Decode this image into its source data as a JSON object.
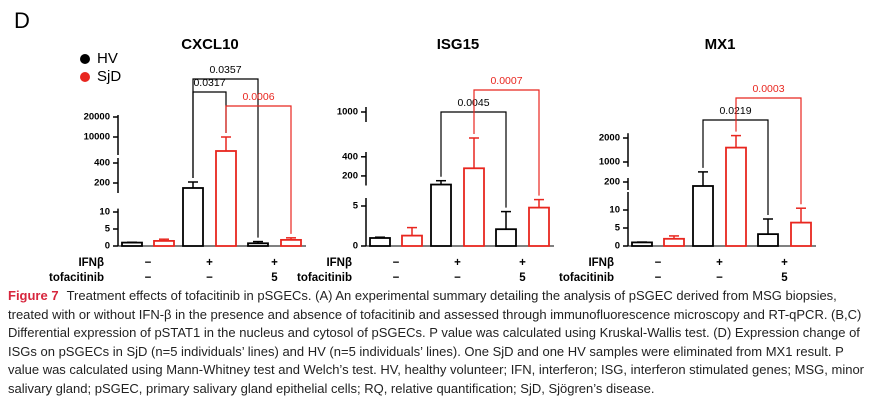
{
  "panel_label": "D",
  "legend": [
    {
      "name": "HV",
      "color": "#000000"
    },
    {
      "name": "SjD",
      "color": "#e8261f"
    }
  ],
  "row_labels": [
    "IFNβ",
    "tofacitinib"
  ],
  "chart_data": [
    {
      "type": "bar",
      "title": "CXCL10",
      "ifn_row": [
        "−",
        "+",
        "+"
      ],
      "tofa_row": [
        "−",
        "−",
        "5"
      ],
      "series": [
        {
          "values": [
            1,
            150,
            0.8
          ],
          "errors": [
            0.1,
            60,
            0.5
          ]
        },
        {
          "values": [
            1.5,
            3000,
            1.8
          ],
          "errors": [
            0.5,
            7000,
            0.6
          ]
        }
      ],
      "ylim": [
        0,
        21000
      ],
      "ysegments": [
        [
          0,
          11
        ],
        [
          100,
          450
        ],
        [
          1000,
          21000
        ]
      ],
      "yticks": [
        0,
        5,
        10,
        200,
        400,
        10000,
        20000
      ],
      "comparisons": [
        {
          "label": "0.0357",
          "color": "#000000"
        },
        {
          "label": "0.0317",
          "color": "#000000"
        },
        {
          "label": "0.0006",
          "color": "#e8261f"
        }
      ]
    },
    {
      "type": "bar",
      "title": "ISG15",
      "ifn_row": [
        "−",
        "+",
        "+"
      ],
      "tofa_row": [
        "−",
        "−",
        "5"
      ],
      "series": [
        {
          "values": [
            1,
            110,
            2.1
          ],
          "errors": [
            0.1,
            40,
            2.2
          ]
        },
        {
          "values": [
            1.3,
            280,
            4.8
          ],
          "errors": [
            1,
            380,
            1
          ]
        }
      ],
      "ylim": [
        0,
        1050
      ],
      "ysegments": [
        [
          0,
          6
        ],
        [
          100,
          450
        ],
        [
          900,
          1050
        ]
      ],
      "yticks": [
        0,
        5,
        200,
        400,
        1000
      ],
      "comparisons": [
        {
          "label": "0.0045",
          "color": "#000000"
        },
        {
          "label": "0.0007",
          "color": "#e8261f"
        }
      ]
    },
    {
      "type": "bar",
      "title": "MX1",
      "ifn_row": [
        "−",
        "+",
        "+"
      ],
      "tofa_row": [
        "−",
        "−",
        "5"
      ],
      "series": [
        {
          "values": [
            1,
            150,
            3.3
          ],
          "errors": [
            0.1,
            400,
            4.2
          ]
        },
        {
          "values": [
            2,
            1600,
            6.5
          ],
          "errors": [
            0.8,
            500,
            4
          ]
        }
      ],
      "ylim": [
        0,
        2200
      ],
      "ysegments": [
        [
          0,
          15
        ],
        [
          100,
          250
        ],
        [
          800,
          2200
        ]
      ],
      "yticks": [
        0,
        5,
        10,
        200,
        1000,
        2000
      ],
      "comparisons": [
        {
          "label": "0.0219",
          "color": "#000000"
        },
        {
          "label": "0.0003",
          "color": "#e8261f"
        }
      ]
    }
  ],
  "caption": {
    "label": "Figure 7",
    "text": "Treatment effects of tofacitinib in pSGECs. (A) An experimental summary detailing the analysis of pSGEC derived from MSG biopsies, treated with or without IFN-β in the presence and absence of tofacitinib and assessed through immunofluorescence microscopy and RT-qPCR. (B,C) Differential expression of pSTAT1 in the nucleus and cytosol of pSGECs. P value was calculated using Kruskal-Wallis test. (D) Expression change of ISGs on pSGECs in SjD (n=5 individuals’ lines) and HV (n=5 individuals’ lines). One SjD and one HV samples were eliminated from MX1 result. P value was calculated using Mann-Whitney test and Welch’s test. HV, healthy volunteer; IFN, interferon; ISG, interferon stimulated genes; MSG, minor salivary gland; pSGEC, primary salivary gland epithelial cells; RQ, relative quantification; SjD, Sjögren’s disease."
  }
}
